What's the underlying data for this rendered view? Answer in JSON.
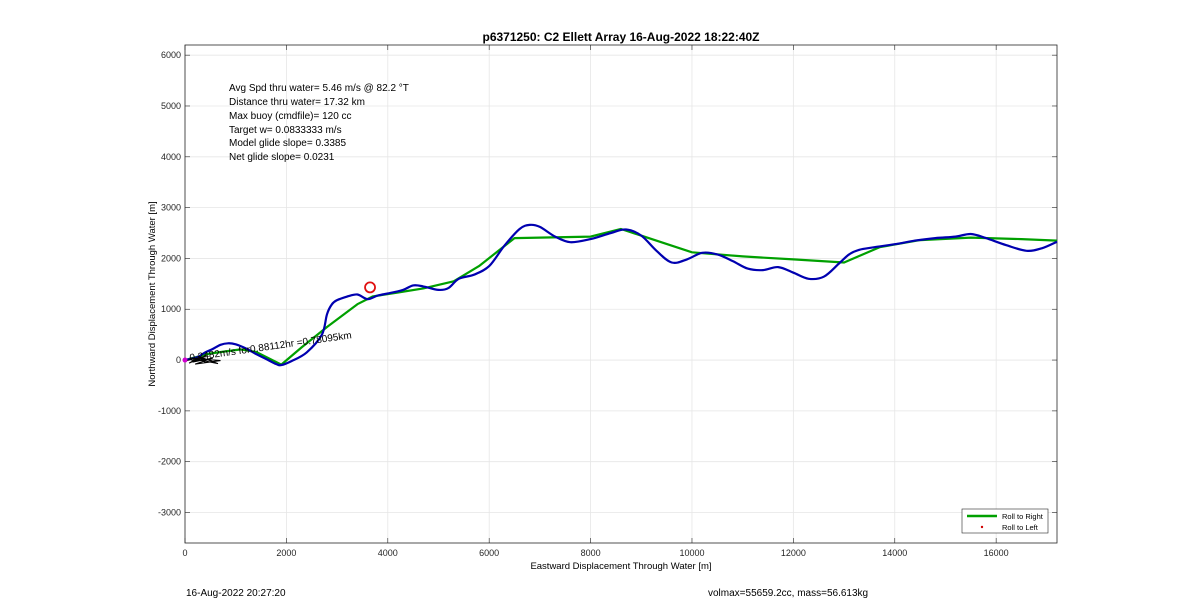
{
  "chart_data": {
    "type": "line",
    "title": "p6371250: C2 Ellett Array 16-Aug-2022 18:22:40Z",
    "xlabel": "Eastward Displacement Through Water [m]",
    "ylabel": "Northward Displacement Through Water [m]",
    "xlim": [
      0,
      17200
    ],
    "ylim": [
      -3600,
      6200
    ],
    "xticks": [
      0,
      2000,
      4000,
      6000,
      8000,
      10000,
      12000,
      14000,
      16000
    ],
    "yticks": [
      -3000,
      -2000,
      -1000,
      0,
      1000,
      2000,
      3000,
      4000,
      5000,
      6000
    ],
    "grid": true,
    "legend_position": "bottom-right",
    "annotations": [
      "Avg Spd thru water=  5.46 m/s @  82.2 °T",
      "Distance thru water= 17.32 km",
      "Max buoy (cmdfile)= 120 cc",
      "Target w= 0.0833333 m/s",
      "Model glide slope= 0.3385",
      "Net glide slope= 0.0231"
    ],
    "drift_label": "0.2482m/s for0.88112hr =0.78095km",
    "series": [
      {
        "name": "Roll to Right",
        "color": "#00a000",
        "x": [
          0,
          120,
          300,
          500,
          800,
          1100,
          1400,
          1900,
          2300,
          2800,
          3400,
          3700,
          4200,
          4700,
          5300,
          5800,
          6500,
          8000,
          8600,
          10000,
          11000,
          12000,
          13000,
          13700,
          14500,
          15500,
          16500,
          17200
        ],
        "y": [
          0,
          30,
          80,
          130,
          170,
          210,
          160,
          -90,
          250,
          650,
          1100,
          1250,
          1330,
          1410,
          1550,
          1850,
          2400,
          2430,
          2580,
          2120,
          2040,
          1980,
          1920,
          2220,
          2360,
          2410,
          2380,
          2350
        ]
      },
      {
        "name": "Roll to Left",
        "color": "#d00000",
        "x": [],
        "y": []
      },
      {
        "name": "",
        "color": "#0000b0",
        "x": [
          0,
          100,
          250,
          400,
          550,
          700,
          850,
          1000,
          1200,
          1400,
          1600,
          1800,
          1900,
          2100,
          2400,
          2700,
          2800,
          2900,
          3000,
          3200,
          3400,
          3600,
          3800,
          4000,
          4300,
          4500,
          4700,
          5000,
          5200,
          5400,
          5700,
          6000,
          6300,
          6600,
          6800,
          7000,
          7300,
          7600,
          8000,
          8400,
          8700,
          9000,
          9300,
          9600,
          9900,
          10200,
          10500,
          10800,
          11100,
          11400,
          11700,
          12000,
          12300,
          12600,
          12900,
          13100,
          13300,
          13600,
          14000,
          14400,
          14800,
          15200,
          15500,
          15800,
          16200,
          16600,
          16900,
          17200
        ],
        "y": [
          0,
          20,
          60,
          150,
          220,
          300,
          330,
          310,
          230,
          120,
          20,
          -80,
          -100,
          -20,
          150,
          500,
          900,
          1100,
          1180,
          1250,
          1290,
          1200,
          1270,
          1310,
          1380,
          1470,
          1450,
          1380,
          1420,
          1600,
          1680,
          1850,
          2250,
          2580,
          2660,
          2620,
          2430,
          2320,
          2380,
          2500,
          2570,
          2450,
          2150,
          1920,
          1980,
          2110,
          2080,
          1950,
          1800,
          1770,
          1830,
          1720,
          1600,
          1640,
          1900,
          2080,
          2170,
          2220,
          2280,
          2350,
          2400,
          2430,
          2480,
          2400,
          2260,
          2150,
          2200,
          2330
        ]
      }
    ],
    "start_marker_color": "#d000d0",
    "current_position": {
      "x": 3650,
      "y": 1430,
      "color": "#e01010"
    }
  },
  "footer": {
    "timestamp": "16-Aug-2022 20:27:20",
    "vol_mass": "volmax=55659.2cc, mass=56.613kg"
  }
}
